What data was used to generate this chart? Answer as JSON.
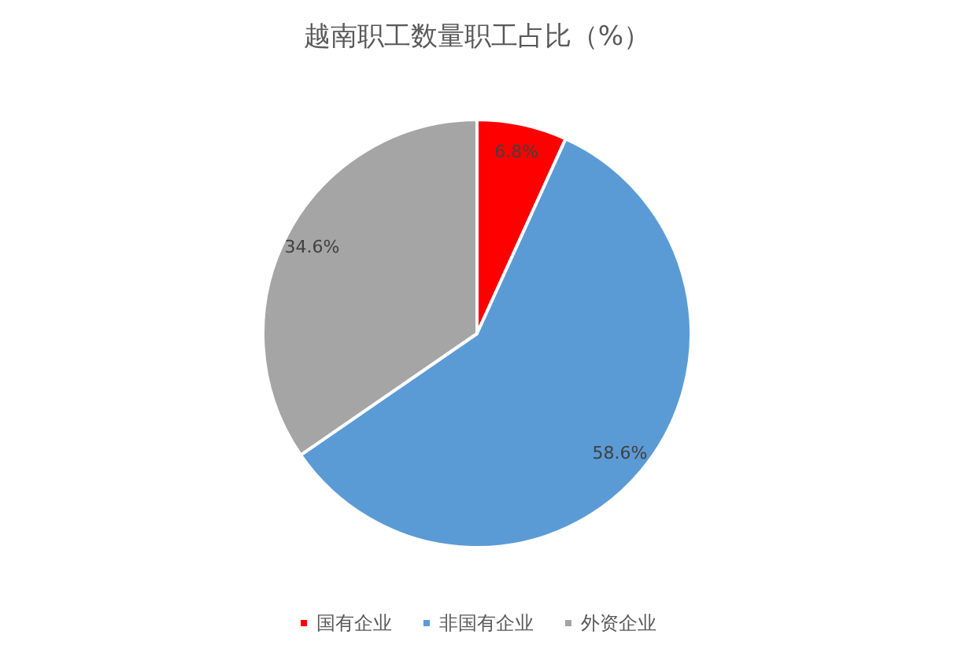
{
  "chart_data": {
    "type": "pie",
    "title": "越南职工数量职工占比（%）",
    "categories": [
      "国有企业",
      "非国有企业",
      "外资企业"
    ],
    "values": [
      6.8,
      58.6,
      34.6
    ],
    "colors": [
      "#ff0000",
      "#5b9bd5",
      "#a5a5a5"
    ],
    "value_labels": [
      "6.8%",
      "58.6%",
      "34.6%"
    ],
    "legend": "bottom"
  }
}
